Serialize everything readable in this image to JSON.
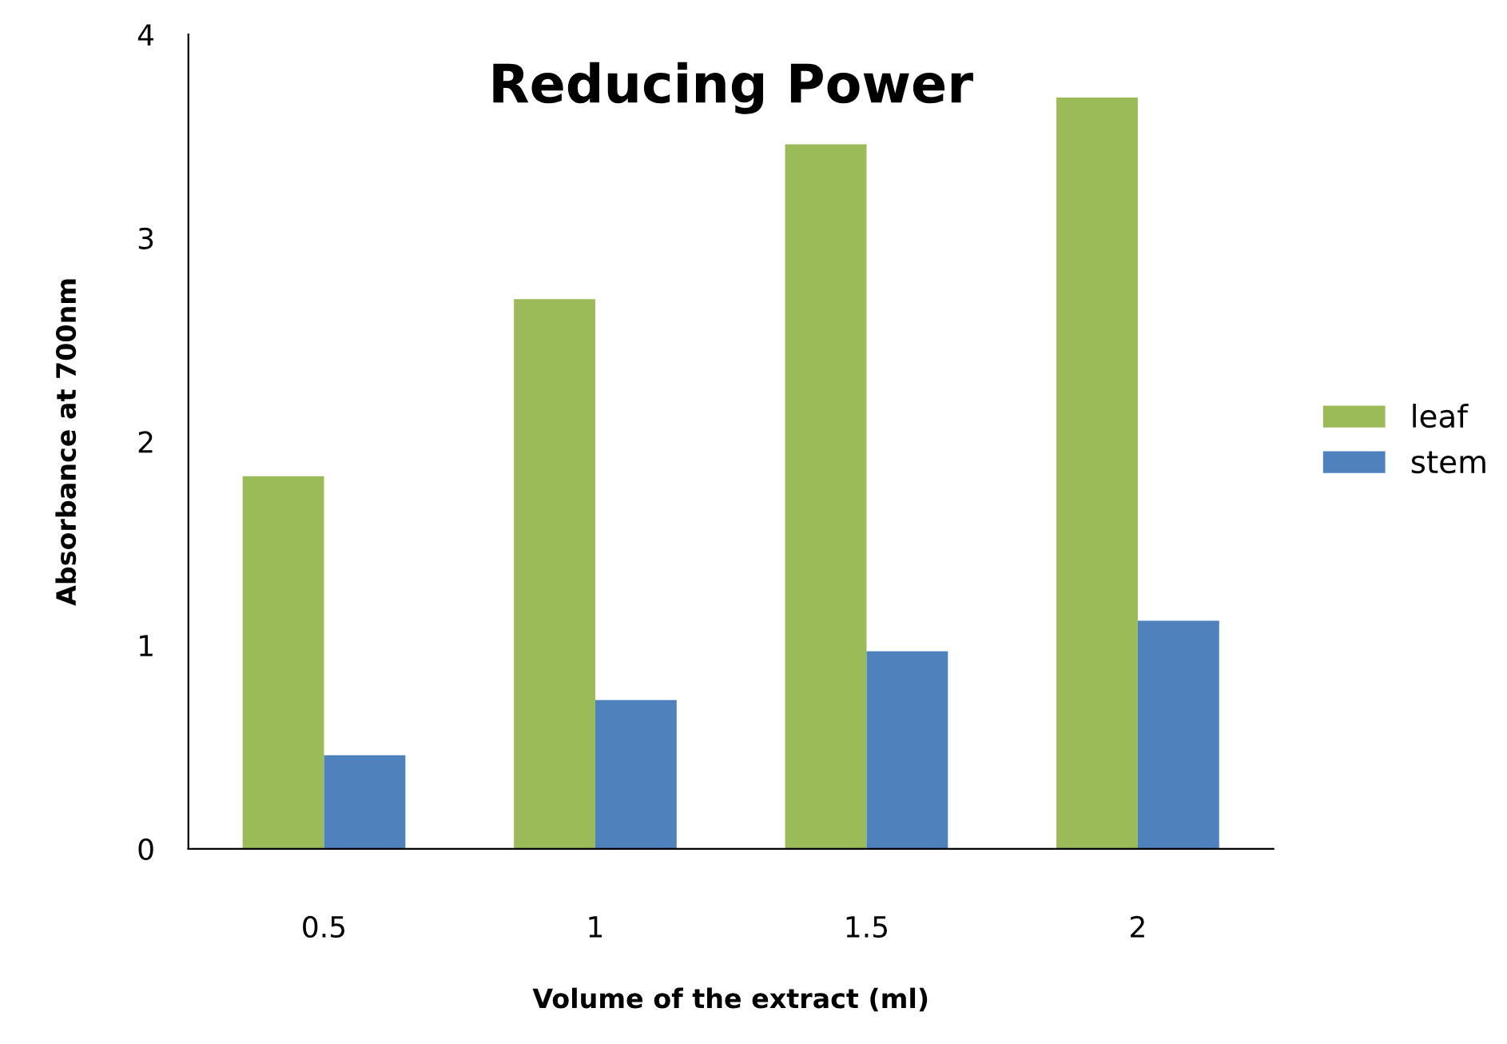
{
  "chart_data": {
    "type": "bar",
    "title": "Reducing Power",
    "xlabel": "Volume of the extract (ml)",
    "ylabel": "Absorbance at 700nm",
    "categories": [
      "0.5",
      "1",
      "1.5",
      "2"
    ],
    "series": [
      {
        "name": "leaf",
        "color": "#9bbb59",
        "values": [
          1.83,
          2.7,
          3.46,
          3.69
        ]
      },
      {
        "name": "stem",
        "color": "#4f81bd",
        "values": [
          0.46,
          0.73,
          0.97,
          1.12
        ]
      }
    ],
    "ylim": [
      0,
      4
    ],
    "yticks": [
      0,
      1,
      2,
      3,
      4
    ],
    "grid": false,
    "legend": "right"
  }
}
